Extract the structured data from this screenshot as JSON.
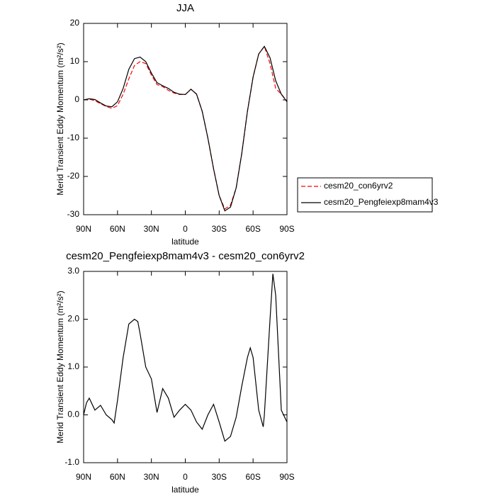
{
  "chart_data": [
    {
      "type": "line",
      "title": "JJA",
      "xlabel": "latitude",
      "ylabel": "Merid Transient Eddy Momentum (m²/s²)",
      "x": [
        90,
        85,
        80,
        75,
        70,
        65,
        60,
        55,
        50,
        45,
        40,
        35,
        30,
        25,
        20,
        15,
        10,
        5,
        0,
        -5,
        -10,
        -15,
        -20,
        -25,
        -30,
        -35,
        -40,
        -45,
        -50,
        -55,
        -60,
        -65,
        -70,
        -75,
        -80,
        -85,
        -90
      ],
      "series": [
        {
          "name": "cesm20_con6yrv2",
          "color": "#ff0000",
          "line_style": "dashed",
          "values": [
            0,
            0.2,
            -0.2,
            -1,
            -1.7,
            -2.2,
            -1.5,
            1.5,
            5.5,
            9,
            10,
            9.5,
            6.5,
            4,
            3.5,
            2.5,
            1.8,
            1.4,
            1.4,
            2.8,
            1.5,
            -3,
            -10,
            -18,
            -25,
            -28.5,
            -27.5,
            -23,
            -14,
            -3,
            6,
            12,
            14,
            9.5,
            3,
            1.5,
            -0.3
          ]
        },
        {
          "name": "cesm20_Pengfeiexp8mam4v3",
          "color": "#000000",
          "line_style": "solid",
          "values": [
            0,
            0.3,
            0.1,
            -0.8,
            -1.6,
            -1.8,
            -0.5,
            3,
            8,
            10.8,
            11.2,
            10,
            7,
            4.5,
            3.7,
            3,
            2,
            1.5,
            1.4,
            2.8,
            1.5,
            -3,
            -10,
            -18,
            -25,
            -29,
            -28,
            -23,
            -14,
            -3,
            6,
            12,
            14,
            11,
            5,
            1.5,
            -0.5
          ]
        }
      ],
      "xlim": [
        90,
        -90
      ],
      "xticks": [
        {
          "value": 90,
          "label": "90N"
        },
        {
          "value": 60,
          "label": "60N"
        },
        {
          "value": 30,
          "label": "30N"
        },
        0,
        {
          "value": -30,
          "label": "30S"
        },
        {
          "value": -60,
          "label": "60S"
        },
        {
          "value": -90,
          "label": "90S"
        }
      ],
      "ylim": [
        -30,
        20
      ],
      "yticks": [
        -30,
        -20,
        -10,
        0,
        10,
        20
      ],
      "legend": "right"
    },
    {
      "type": "line",
      "title": "cesm20_Pengfeiexp8mam4v3 - cesm20_con6yrv2",
      "xlabel": "latitude",
      "ylabel": "Merid Transient Eddy Momentum (m²/s²)",
      "x": [
        90,
        87.5,
        85,
        80,
        75,
        70,
        65,
        63,
        60,
        55,
        50,
        45,
        42,
        40,
        35,
        30,
        25,
        20,
        15,
        10,
        5,
        0,
        -5,
        -10,
        -15,
        -20,
        -25,
        -30,
        -35,
        -40,
        -45,
        -50,
        -55,
        -57.5,
        -60,
        -65,
        -69,
        -70,
        -75,
        -77.5,
        -80,
        -85,
        -90
      ],
      "series": [
        {
          "name": "cesm20_Pengfeiexp8mam4v3 - cesm20_con6yrv2",
          "color": "#000000",
          "line_style": "solid",
          "values": [
            0,
            0.25,
            0.35,
            0.1,
            0.2,
            0,
            -0.1,
            -0.17,
            0.3,
            1.2,
            1.9,
            2,
            1.95,
            1.7,
            1,
            0.75,
            0.05,
            0.55,
            0.35,
            -0.05,
            0.1,
            0.22,
            0.1,
            -0.15,
            -0.3,
            0,
            0.22,
            -0.15,
            -0.55,
            -0.45,
            -0.05,
            0.6,
            1.2,
            1.4,
            1.2,
            0.1,
            -0.25,
            0,
            2,
            2.95,
            2.5,
            0.1,
            -0.15
          ]
        }
      ],
      "xlim": [
        90,
        -90
      ],
      "xticks": [
        {
          "value": 90,
          "label": "90N"
        },
        {
          "value": 60,
          "label": "60N"
        },
        {
          "value": 30,
          "label": "30N"
        },
        0,
        {
          "value": -30,
          "label": "30S"
        },
        {
          "value": -60,
          "label": "60S"
        },
        {
          "value": -90,
          "label": "90S"
        }
      ],
      "ylim": [
        -1,
        3
      ],
      "yticks": [
        {
          "value": -1,
          "label": "-1.0"
        },
        {
          "value": 0,
          "label": "0.0"
        },
        {
          "value": 1,
          "label": "1.0"
        },
        {
          "value": 2,
          "label": "2.0"
        },
        {
          "value": 3,
          "label": "3.0"
        }
      ]
    }
  ]
}
